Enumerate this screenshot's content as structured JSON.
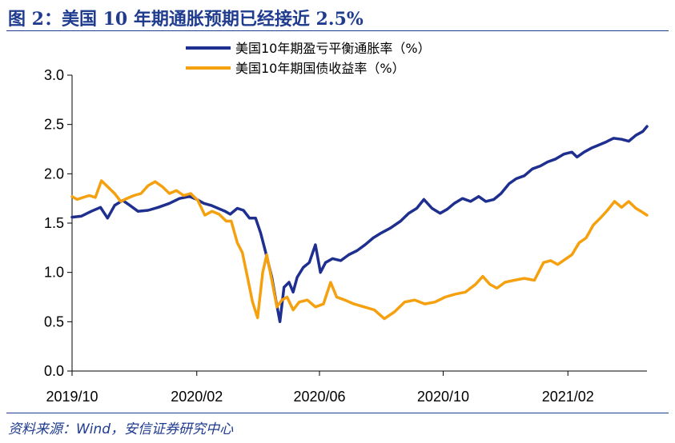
{
  "title": "图 2：美国 10 年期通胀预期已经接近 2.5%",
  "source": "资料来源：Wind，安信证券研究中心",
  "colors": {
    "title": "#1f3c8f",
    "series1": "#1e2f8f",
    "series2": "#f5a10f"
  },
  "chart_data": {
    "type": "line",
    "title": "",
    "xlabel": "",
    "ylabel": "",
    "ylim": [
      0.0,
      3.0
    ],
    "yticks": [
      "0.0",
      "0.5",
      "1.0",
      "1.5",
      "2.0",
      "2.5",
      "3.0"
    ],
    "xlim": [
      "2019-10-01",
      "2021-04-20"
    ],
    "xticks": [
      {
        "date": "2019-10-01",
        "label": "2019/10"
      },
      {
        "date": "2020-02-01",
        "label": "2020/02"
      },
      {
        "date": "2020-06-01",
        "label": "2020/06"
      },
      {
        "date": "2020-10-01",
        "label": "2020/10"
      },
      {
        "date": "2021-02-01",
        "label": "2021/02"
      }
    ],
    "grid": false,
    "legend": "top-center",
    "series": [
      {
        "name": "美国10年期盈亏平衡通胀率（%）",
        "color": "#1e2f8f",
        "points": [
          [
            "2019-10-01",
            1.56
          ],
          [
            "2019-10-10",
            1.57
          ],
          [
            "2019-10-20",
            1.62
          ],
          [
            "2019-10-29",
            1.66
          ],
          [
            "2019-11-05",
            1.55
          ],
          [
            "2019-11-12",
            1.68
          ],
          [
            "2019-11-20",
            1.73
          ],
          [
            "2019-11-27",
            1.68
          ],
          [
            "2019-12-05",
            1.62
          ],
          [
            "2019-12-15",
            1.63
          ],
          [
            "2019-12-25",
            1.66
          ],
          [
            "2020-01-05",
            1.7
          ],
          [
            "2020-01-15",
            1.75
          ],
          [
            "2020-01-25",
            1.77
          ],
          [
            "2020-02-01",
            1.74
          ],
          [
            "2020-02-08",
            1.7
          ],
          [
            "2020-02-15",
            1.68
          ],
          [
            "2020-02-22",
            1.65
          ],
          [
            "2020-02-29",
            1.62
          ],
          [
            "2020-03-05",
            1.59
          ],
          [
            "2020-03-12",
            1.65
          ],
          [
            "2020-03-18",
            1.63
          ],
          [
            "2020-03-24",
            1.55
          ],
          [
            "2020-03-30",
            1.55
          ],
          [
            "2020-04-04",
            1.4
          ],
          [
            "2020-04-09",
            1.2
          ],
          [
            "2020-04-15",
            0.95
          ],
          [
            "2020-04-19",
            0.72
          ],
          [
            "2020-04-23",
            0.5
          ],
          [
            "2020-04-27",
            0.85
          ],
          [
            "2020-05-02",
            0.9
          ],
          [
            "2020-05-06",
            0.8
          ],
          [
            "2020-05-10",
            0.95
          ],
          [
            "2020-05-16",
            1.05
          ],
          [
            "2020-05-22",
            1.1
          ],
          [
            "2020-05-28",
            1.28
          ],
          [
            "2020-06-02",
            1.0
          ],
          [
            "2020-06-07",
            1.1
          ],
          [
            "2020-06-14",
            1.14
          ],
          [
            "2020-06-22",
            1.12
          ],
          [
            "2020-06-30",
            1.18
          ],
          [
            "2020-07-08",
            1.22
          ],
          [
            "2020-07-16",
            1.28
          ],
          [
            "2020-07-24",
            1.35
          ],
          [
            "2020-08-01",
            1.4
          ],
          [
            "2020-08-10",
            1.45
          ],
          [
            "2020-08-20",
            1.52
          ],
          [
            "2020-08-28",
            1.6
          ],
          [
            "2020-09-05",
            1.65
          ],
          [
            "2020-09-12",
            1.74
          ],
          [
            "2020-09-20",
            1.65
          ],
          [
            "2020-09-28",
            1.6
          ],
          [
            "2020-10-05",
            1.64
          ],
          [
            "2020-10-12",
            1.7
          ],
          [
            "2020-10-20",
            1.75
          ],
          [
            "2020-10-28",
            1.72
          ],
          [
            "2020-11-05",
            1.77
          ],
          [
            "2020-11-12",
            1.72
          ],
          [
            "2020-11-20",
            1.74
          ],
          [
            "2020-11-27",
            1.8
          ],
          [
            "2020-12-05",
            1.9
          ],
          [
            "2020-12-12",
            1.95
          ],
          [
            "2020-12-20",
            1.98
          ],
          [
            "2020-12-28",
            2.05
          ],
          [
            "2021-01-05",
            2.08
          ],
          [
            "2021-01-12",
            2.12
          ],
          [
            "2021-01-20",
            2.15
          ],
          [
            "2021-01-28",
            2.2
          ],
          [
            "2021-02-05",
            2.22
          ],
          [
            "2021-02-10",
            2.17
          ],
          [
            "2021-02-17",
            2.22
          ],
          [
            "2021-02-24",
            2.26
          ],
          [
            "2021-03-03",
            2.29
          ],
          [
            "2021-03-10",
            2.32
          ],
          [
            "2021-03-18",
            2.36
          ],
          [
            "2021-03-26",
            2.35
          ],
          [
            "2021-04-02",
            2.33
          ],
          [
            "2021-04-09",
            2.39
          ],
          [
            "2021-04-16",
            2.43
          ],
          [
            "2021-04-20",
            2.48
          ]
        ]
      },
      {
        "name": "美国10年期国债收益率（%）",
        "color": "#f5a10f",
        "points": [
          [
            "2019-10-01",
            1.77
          ],
          [
            "2019-10-06",
            1.74
          ],
          [
            "2019-10-12",
            1.76
          ],
          [
            "2019-10-18",
            1.78
          ],
          [
            "2019-10-24",
            1.76
          ],
          [
            "2019-10-30",
            1.93
          ],
          [
            "2019-11-05",
            1.87
          ],
          [
            "2019-11-12",
            1.8
          ],
          [
            "2019-11-18",
            1.72
          ],
          [
            "2019-11-24",
            1.75
          ],
          [
            "2019-12-01",
            1.78
          ],
          [
            "2019-12-08",
            1.8
          ],
          [
            "2019-12-15",
            1.88
          ],
          [
            "2019-12-22",
            1.92
          ],
          [
            "2019-12-29",
            1.87
          ],
          [
            "2020-01-05",
            1.8
          ],
          [
            "2020-01-12",
            1.83
          ],
          [
            "2020-01-19",
            1.78
          ],
          [
            "2020-01-26",
            1.8
          ],
          [
            "2020-02-02",
            1.73
          ],
          [
            "2020-02-09",
            1.58
          ],
          [
            "2020-02-16",
            1.62
          ],
          [
            "2020-02-23",
            1.59
          ],
          [
            "2020-03-01",
            1.52
          ],
          [
            "2020-03-06",
            1.52
          ],
          [
            "2020-03-12",
            1.3
          ],
          [
            "2020-03-17",
            1.2
          ],
          [
            "2020-03-22",
            0.95
          ],
          [
            "2020-03-27",
            0.7
          ],
          [
            "2020-04-01",
            0.54
          ],
          [
            "2020-04-06",
            1.0
          ],
          [
            "2020-04-10",
            1.18
          ],
          [
            "2020-04-15",
            0.92
          ],
          [
            "2020-04-20",
            0.65
          ],
          [
            "2020-04-25",
            0.72
          ],
          [
            "2020-04-30",
            0.75
          ],
          [
            "2020-05-06",
            0.62
          ],
          [
            "2020-05-12",
            0.7
          ],
          [
            "2020-05-20",
            0.72
          ],
          [
            "2020-05-28",
            0.65
          ],
          [
            "2020-06-05",
            0.68
          ],
          [
            "2020-06-12",
            0.9
          ],
          [
            "2020-06-18",
            0.75
          ],
          [
            "2020-06-26",
            0.72
          ],
          [
            "2020-07-05",
            0.68
          ],
          [
            "2020-07-15",
            0.65
          ],
          [
            "2020-07-25",
            0.62
          ],
          [
            "2020-08-04",
            0.53
          ],
          [
            "2020-08-14",
            0.6
          ],
          [
            "2020-08-24",
            0.7
          ],
          [
            "2020-09-03",
            0.72
          ],
          [
            "2020-09-13",
            0.68
          ],
          [
            "2020-09-23",
            0.7
          ],
          [
            "2020-10-03",
            0.75
          ],
          [
            "2020-10-13",
            0.78
          ],
          [
            "2020-10-23",
            0.8
          ],
          [
            "2020-11-02",
            0.88
          ],
          [
            "2020-11-09",
            0.96
          ],
          [
            "2020-11-16",
            0.88
          ],
          [
            "2020-11-23",
            0.84
          ],
          [
            "2020-12-01",
            0.9
          ],
          [
            "2020-12-10",
            0.92
          ],
          [
            "2020-12-20",
            0.94
          ],
          [
            "2020-12-30",
            0.92
          ],
          [
            "2021-01-08",
            1.1
          ],
          [
            "2021-01-15",
            1.12
          ],
          [
            "2021-01-22",
            1.08
          ],
          [
            "2021-01-29",
            1.13
          ],
          [
            "2021-02-05",
            1.18
          ],
          [
            "2021-02-12",
            1.3
          ],
          [
            "2021-02-19",
            1.35
          ],
          [
            "2021-02-26",
            1.48
          ],
          [
            "2021-03-05",
            1.55
          ],
          [
            "2021-03-12",
            1.63
          ],
          [
            "2021-03-19",
            1.72
          ],
          [
            "2021-03-26",
            1.66
          ],
          [
            "2021-04-02",
            1.72
          ],
          [
            "2021-04-09",
            1.65
          ],
          [
            "2021-04-14",
            1.62
          ],
          [
            "2021-04-20",
            1.58
          ]
        ]
      }
    ]
  }
}
